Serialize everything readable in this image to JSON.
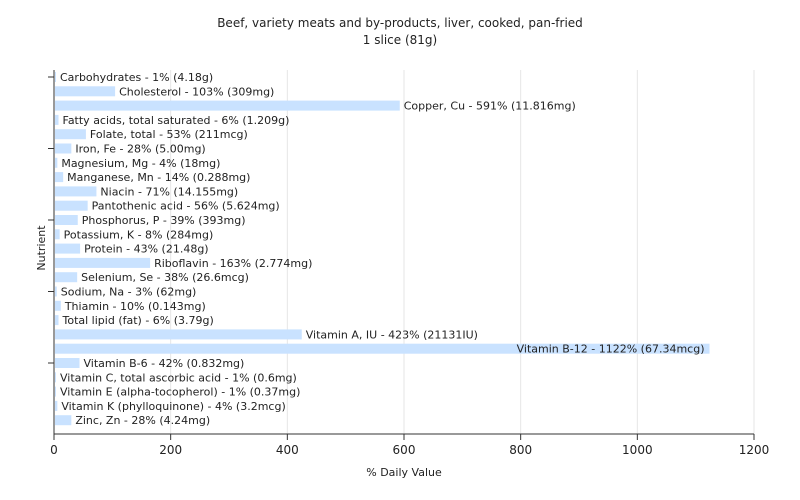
{
  "chart_data": {
    "type": "bar",
    "orientation": "horizontal",
    "title": "Beef, variety meats and by-products, liver, cooked, pan-fried",
    "subtitle": "1 slice (81g)",
    "xlabel": "% Daily Value",
    "ylabel": "Nutrient",
    "xlim": [
      0,
      1200
    ],
    "xticks": [
      0,
      200,
      400,
      600,
      800,
      1000,
      1200
    ],
    "grid": "vertical",
    "bar_color": "#c9e2ff",
    "categories": [
      "Carbohydrates",
      "Cholesterol",
      "Copper, Cu",
      "Fatty acids, total saturated",
      "Folate, total",
      "Iron, Fe",
      "Magnesium, Mg",
      "Manganese, Mn",
      "Niacin",
      "Pantothenic acid",
      "Phosphorus, P",
      "Potassium, K",
      "Protein",
      "Riboflavin",
      "Selenium, Se",
      "Sodium, Na",
      "Thiamin",
      "Total lipid (fat)",
      "Vitamin A, IU",
      "Vitamin B-12",
      "Vitamin B-6",
      "Vitamin C, total ascorbic acid",
      "Vitamin E (alpha-tocopherol)",
      "Vitamin K (phylloquinone)",
      "Zinc, Zn"
    ],
    "values": [
      1,
      103,
      591,
      6,
      53,
      28,
      4,
      14,
      71,
      56,
      39,
      8,
      43,
      163,
      38,
      3,
      10,
      6,
      423,
      1122,
      42,
      1,
      1,
      4,
      28
    ],
    "labels": [
      "Carbohydrates - 1% (4.18g)",
      "Cholesterol - 103% (309mg)",
      "Copper, Cu - 591% (11.816mg)",
      "Fatty acids, total saturated - 6% (1.209g)",
      "Folate, total - 53% (211mcg)",
      "Iron, Fe - 28% (5.00mg)",
      "Magnesium, Mg - 4% (18mg)",
      "Manganese, Mn - 14% (0.288mg)",
      "Niacin - 71% (14.155mg)",
      "Pantothenic acid - 56% (5.624mg)",
      "Phosphorus, P - 39% (393mg)",
      "Potassium, K - 8% (284mg)",
      "Protein - 43% (21.48g)",
      "Riboflavin - 163% (2.774mg)",
      "Selenium, Se - 38% (26.6mcg)",
      "Sodium, Na - 3% (62mg)",
      "Thiamin - 10% (0.143mg)",
      "Total lipid (fat) - 6% (3.79g)",
      "Vitamin A, IU - 423% (21131IU)",
      "Vitamin B-12 - 1122% (67.34mcg)",
      "Vitamin B-6 - 42% (0.832mg)",
      "Vitamin C, total ascorbic acid - 1% (0.6mg)",
      "Vitamin E (alpha-tocopherol) - 1% (0.37mg)",
      "Vitamin K (phylloquinone) - 4% (3.2mcg)",
      "Zinc, Zn - 28% (4.24mg)"
    ]
  }
}
